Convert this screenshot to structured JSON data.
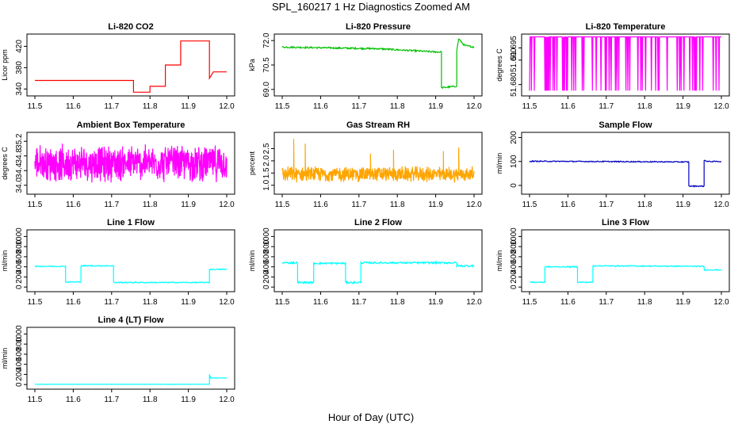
{
  "figure": {
    "title": "SPL_160217  1 Hz Diagnostics Zoomed AM",
    "xlabel": "Hour of Day (UTC)"
  },
  "chart_data": [
    {
      "type": "line",
      "title": "Li-820 CO2",
      "ylabel": "Licor ppm",
      "color": "#ff0000",
      "xlim": [
        11.5,
        12.0
      ],
      "ylim": [
        330,
        440
      ],
      "x_ticks": [
        "11.5",
        "11.6",
        "11.7",
        "11.8",
        "11.9",
        "12.0"
      ],
      "y_ticks": [
        {
          "v": 340,
          "label": "340"
        },
        {
          "v": 380,
          "label": "380"
        },
        {
          "v": 420,
          "label": "420"
        }
      ],
      "segments": [
        [
          11.5,
          356
        ],
        [
          11.757,
          356
        ],
        [
          11.757,
          334
        ],
        [
          11.8,
          334
        ],
        [
          11.8,
          345
        ],
        [
          11.84,
          345
        ],
        [
          11.84,
          385
        ],
        [
          11.88,
          385
        ],
        [
          11.88,
          430
        ],
        [
          11.955,
          430
        ],
        [
          11.955,
          360
        ],
        [
          11.965,
          372
        ],
        [
          12.0,
          372
        ]
      ],
      "noise": 0
    },
    {
      "type": "line",
      "title": "Li-820 Pressure",
      "ylabel": "kPa",
      "color": "#00c000",
      "xlim": [
        11.5,
        12.0
      ],
      "ylim": [
        68.7,
        72.3
      ],
      "x_ticks": [
        "11.5",
        "11.6",
        "11.7",
        "11.8",
        "11.9",
        "12.0"
      ],
      "y_ticks": [
        {
          "v": 69.0,
          "label": "69.0"
        },
        {
          "v": 70.5,
          "label": "70.5"
        },
        {
          "v": 72.0,
          "label": "72.0"
        }
      ],
      "segments": [
        [
          11.5,
          71.6
        ],
        [
          11.75,
          71.5
        ],
        [
          11.9,
          71.3
        ],
        [
          11.915,
          71.3
        ],
        [
          11.915,
          69.1
        ],
        [
          11.955,
          69.2
        ],
        [
          11.955,
          71.4
        ],
        [
          11.96,
          72.1
        ],
        [
          11.975,
          71.7
        ],
        [
          12.0,
          71.6
        ]
      ],
      "noise": 0.05
    },
    {
      "type": "line",
      "title": "Li-820 Temperature",
      "ylabel": "degrees C",
      "color": "#ff00ff",
      "xlim": [
        11.5,
        12.0
      ],
      "ylim": [
        51.676,
        51.7
      ],
      "x_ticks": [
        "11.5",
        "11.6",
        "11.7",
        "11.8",
        "11.9",
        "12.0"
      ],
      "y_ticks": [
        {
          "v": 51.68,
          "label": "51.680"
        },
        {
          "v": 51.69,
          "label": "51.690"
        },
        {
          "v": 51.695,
          "label": "51.695"
        }
      ],
      "series_kind": "binary",
      "levels": [
        51.6995,
        51.6775
      ],
      "noise": 0
    },
    {
      "type": "line",
      "title": "Ambient Box Temperature",
      "ylabel": "degrees C",
      "color": "#ff00ff",
      "xlim": [
        11.5,
        12.0
      ],
      "ylim": [
        33.8,
        35.4
      ],
      "x_ticks": [
        "11.5",
        "11.6",
        "11.7",
        "11.8",
        "11.9",
        "12.0"
      ],
      "y_ticks": [
        {
          "v": 34.0,
          "label": "34.0"
        },
        {
          "v": 34.4,
          "label": "34.4"
        },
        {
          "v": 34.8,
          "label": "34.8"
        },
        {
          "v": 35.2,
          "label": "35.2"
        }
      ],
      "series_kind": "band",
      "center": 34.6,
      "spread": 0.55,
      "noise": 0
    },
    {
      "type": "line",
      "title": "Gas Stream RH",
      "ylabel": "percent",
      "color": "#ffa500",
      "xlim": [
        11.5,
        12.0
      ],
      "ylim": [
        0.7,
        3.1
      ],
      "x_ticks": [
        "11.5",
        "11.6",
        "11.7",
        "11.8",
        "11.9",
        "12.0"
      ],
      "y_ticks": [
        {
          "v": 1.0,
          "label": "1.0"
        },
        {
          "v": 1.5,
          "label": "1.5"
        },
        {
          "v": 2.0,
          "label": "2.0"
        },
        {
          "v": 2.5,
          "label": "2.5"
        }
      ],
      "series_kind": "band",
      "center": 1.45,
      "spread": 0.35,
      "spikes": [
        [
          11.53,
          2.9
        ],
        [
          11.56,
          2.7
        ],
        [
          11.79,
          2.45
        ],
        [
          11.92,
          2.4
        ],
        [
          11.96,
          2.55
        ],
        [
          11.73,
          2.3
        ]
      ],
      "noise": 0
    },
    {
      "type": "line",
      "title": "Sample Flow",
      "ylabel": "ml/min",
      "color": "#0000c0",
      "xlim": [
        11.5,
        12.0
      ],
      "ylim": [
        -30,
        215
      ],
      "x_ticks": [
        "11.5",
        "11.6",
        "11.7",
        "11.8",
        "11.9",
        "12.0"
      ],
      "y_ticks": [
        {
          "v": 0,
          "label": "0"
        },
        {
          "v": 100,
          "label": "100"
        },
        {
          "v": 200,
          "label": "200"
        }
      ],
      "segments": [
        [
          11.5,
          101
        ],
        [
          11.8,
          99
        ],
        [
          11.915,
          98
        ],
        [
          11.915,
          -3
        ],
        [
          11.955,
          -3
        ],
        [
          11.955,
          105
        ],
        [
          11.965,
          100
        ],
        [
          12.0,
          100
        ]
      ],
      "noise": 2
    },
    {
      "type": "line",
      "title": "Line 1 Flow",
      "ylabel": "ml/min",
      "color": "#00ffff",
      "xlim": [
        11.5,
        12.0
      ],
      "ylim": [
        -60,
        1100
      ],
      "x_ticks": [
        "11.5",
        "11.6",
        "11.7",
        "11.8",
        "11.9",
        "12.0"
      ],
      "y_ticks": [
        {
          "v": 0,
          "label": "0"
        },
        {
          "v": 200,
          "label": "200"
        },
        {
          "v": 400,
          "label": "400"
        },
        {
          "v": 600,
          "label": "600"
        },
        {
          "v": 800,
          "label": "800"
        },
        {
          "v": 1000,
          "label": "1000"
        }
      ],
      "segments": [
        [
          11.5,
          410
        ],
        [
          11.58,
          410
        ],
        [
          11.58,
          100
        ],
        [
          11.62,
          100
        ],
        [
          11.62,
          420
        ],
        [
          11.705,
          420
        ],
        [
          11.705,
          90
        ],
        [
          11.955,
          90
        ],
        [
          11.955,
          350
        ],
        [
          12.0,
          350
        ]
      ],
      "noise": 10
    },
    {
      "type": "line",
      "title": "Line 2 Flow",
      "ylabel": "ml/min",
      "color": "#00ffff",
      "xlim": [
        11.5,
        12.0
      ],
      "ylim": [
        -60,
        1100
      ],
      "x_ticks": [
        "11.5",
        "11.6",
        "11.7",
        "11.8",
        "11.9",
        "12.0"
      ],
      "y_ticks": [
        {
          "v": 0,
          "label": "0"
        },
        {
          "v": 200,
          "label": "200"
        },
        {
          "v": 400,
          "label": "400"
        },
        {
          "v": 600,
          "label": "600"
        },
        {
          "v": 800,
          "label": "800"
        },
        {
          "v": 1000,
          "label": "1000"
        }
      ],
      "segments": [
        [
          11.5,
          480
        ],
        [
          11.54,
          480
        ],
        [
          11.54,
          90
        ],
        [
          11.582,
          90
        ],
        [
          11.582,
          470
        ],
        [
          11.665,
          470
        ],
        [
          11.665,
          90
        ],
        [
          11.705,
          90
        ],
        [
          11.705,
          480
        ],
        [
          11.955,
          480
        ],
        [
          11.955,
          420
        ],
        [
          12.0,
          420
        ]
      ],
      "noise": 18
    },
    {
      "type": "line",
      "title": "Line 3 Flow",
      "ylabel": "ml/min",
      "color": "#00ffff",
      "xlim": [
        11.5,
        12.0
      ],
      "ylim": [
        -60,
        1100
      ],
      "x_ticks": [
        "11.5",
        "11.6",
        "11.7",
        "11.8",
        "11.9",
        "12.0"
      ],
      "y_ticks": [
        {
          "v": 0,
          "label": "0"
        },
        {
          "v": 200,
          "label": "200"
        },
        {
          "v": 400,
          "label": "400"
        },
        {
          "v": 600,
          "label": "600"
        },
        {
          "v": 800,
          "label": "800"
        },
        {
          "v": 1000,
          "label": "1000"
        }
      ],
      "segments": [
        [
          11.5,
          95
        ],
        [
          11.54,
          95
        ],
        [
          11.54,
          400
        ],
        [
          11.625,
          400
        ],
        [
          11.625,
          95
        ],
        [
          11.665,
          95
        ],
        [
          11.665,
          420
        ],
        [
          11.955,
          410
        ],
        [
          11.955,
          340
        ],
        [
          12.0,
          340
        ]
      ],
      "noise": 10
    },
    {
      "type": "line",
      "title": "Line 4 (LT) Flow",
      "ylabel": "ml/min",
      "color": "#00ffff",
      "xlim": [
        11.5,
        12.0
      ],
      "ylim": [
        -60,
        1100
      ],
      "x_ticks": [
        "11.5",
        "11.6",
        "11.7",
        "11.8",
        "11.9",
        "12.0"
      ],
      "y_ticks": [
        {
          "v": 0,
          "label": "0"
        },
        {
          "v": 200,
          "label": "200"
        },
        {
          "v": 400,
          "label": "400"
        },
        {
          "v": 600,
          "label": "600"
        },
        {
          "v": 800,
          "label": "800"
        },
        {
          "v": 1000,
          "label": "1000"
        }
      ],
      "segments": [
        [
          11.5,
          5
        ],
        [
          11.955,
          5
        ],
        [
          11.955,
          200
        ],
        [
          11.958,
          130
        ],
        [
          12.0,
          130
        ]
      ],
      "noise": 2
    }
  ]
}
